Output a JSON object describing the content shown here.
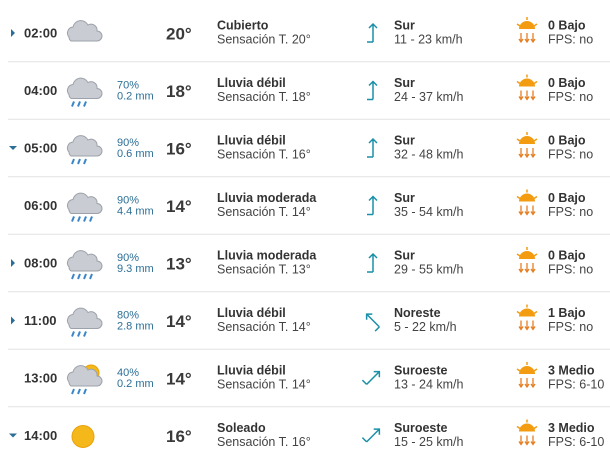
{
  "rows": [
    {
      "time": "02:00",
      "temp": "20°",
      "condition": "Cubierto",
      "feels": "Sensación T. 20°",
      "wind_dir": "Sur",
      "wind_speed": "11 - 23 km/h",
      "uv": "0 Bajo",
      "fps": "FPS: no"
    },
    {
      "time": "04:00",
      "precip_prob": "70%",
      "precip": "0.2 mm",
      "temp": "18°",
      "condition": "Lluvia débil",
      "feels": "Sensación T. 18°",
      "wind_dir": "Sur",
      "wind_speed": "24 - 37 km/h",
      "uv": "0 Bajo",
      "fps": "FPS: no"
    },
    {
      "time": "05:00",
      "precip_prob": "90%",
      "precip": "0.6 mm",
      "temp": "16°",
      "condition": "Lluvia débil",
      "feels": "Sensación T. 16°",
      "wind_dir": "Sur",
      "wind_speed": "32 - 48 km/h",
      "uv": "0 Bajo",
      "fps": "FPS: no"
    },
    {
      "time": "06:00",
      "precip_prob": "90%",
      "precip": "4.4 mm",
      "temp": "14°",
      "condition": "Lluvia moderada",
      "feels": "Sensación T. 14°",
      "wind_dir": "Sur",
      "wind_speed": "35 - 54 km/h",
      "uv": "0 Bajo",
      "fps": "FPS: no"
    },
    {
      "time": "08:00",
      "precip_prob": "90%",
      "precip": "9.3 mm",
      "temp": "13°",
      "condition": "Lluvia moderada",
      "feels": "Sensación T. 13°",
      "wind_dir": "Sur",
      "wind_speed": "29 - 55 km/h",
      "uv": "0 Bajo",
      "fps": "FPS: no"
    },
    {
      "time": "11:00",
      "precip_prob": "80%",
      "precip": "2.8 mm",
      "temp": "14°",
      "condition": "Lluvia débil",
      "feels": "Sensación T. 14°",
      "wind_dir": "Noreste",
      "wind_speed": "5 - 22 km/h",
      "uv": "1 Bajo",
      "fps": "FPS: no"
    },
    {
      "time": "13:00",
      "precip_prob": "40%",
      "precip": "0.2 mm",
      "temp": "14°",
      "condition": "Lluvia débil",
      "feels": "Sensación T. 14°",
      "wind_dir": "Suroeste",
      "wind_speed": "13 - 24 km/h",
      "uv": "3 Medio",
      "fps": "FPS: 6-10"
    },
    {
      "time": "14:00",
      "temp": "16°",
      "condition": "Soleado",
      "feels": "Sensación T. 16°",
      "wind_dir": "Suroeste",
      "wind_speed": "15 - 25 km/h",
      "uv": "3 Medio",
      "fps": "FPS: 6-10"
    }
  ]
}
